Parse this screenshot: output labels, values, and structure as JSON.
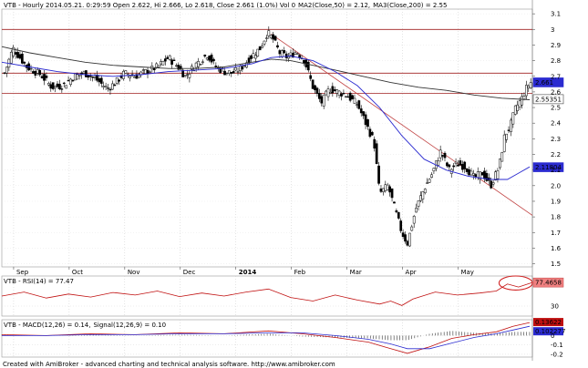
{
  "chart_data": [
    {
      "type": "candlestick",
      "title": "VTB - Hourly 2014.05.21. 0:29:59 Open 2.622, Hi 2.666, Lo 2.618, Close 2.661 (1.0%) Vol 0",
      "indicators": [
        {
          "label": "MA2(Close,50) = 2.12,",
          "color": "#2b2bd0"
        },
        {
          "label": "MA3(Close,200) = 2.55",
          "color": "#333333"
        }
      ],
      "x_labels": [
        "Sep",
        "Oct",
        "Nov",
        "Dec",
        "2014",
        "Feb",
        "Mar",
        "Apr",
        "May"
      ],
      "x_positions": [
        1,
        2,
        3,
        4,
        5,
        6,
        7,
        8,
        9
      ],
      "y_ticks": [
        1.5,
        1.6,
        1.7,
        1.8,
        1.9,
        2.0,
        2.1,
        2.2,
        2.3,
        2.4,
        2.5,
        2.6,
        2.7,
        2.8,
        2.9,
        3.0,
        3.1
      ],
      "y_tick_labels": [
        "1.5",
        "1.6",
        "1.7",
        "1.8",
        "1.9",
        "2.0",
        "2.1",
        "2.2",
        "2.3",
        "2.4",
        "2.5",
        "2.6",
        "2.7",
        "2.8",
        "2.9",
        "3",
        "3.1"
      ],
      "ylim": [
        1.48,
        3.13
      ],
      "xlim": [
        0.0,
        9.55
      ],
      "horizontal_lines": [
        3.0,
        2.72,
        2.59
      ],
      "trendline": {
        "from": [
          4.85,
          2.97
        ],
        "to": [
          9.55,
          1.81
        ],
        "color": "#c04040"
      },
      "value_badges": [
        {
          "value": "2.661",
          "y": 2.661,
          "color": "#2b2bd0"
        },
        {
          "value": "2.55351",
          "y": 2.5535,
          "color": "#ffffff",
          "text_color": "#000000"
        },
        {
          "value": "2.11804",
          "y": 2.118,
          "color": "#2b2bd0"
        }
      ],
      "price_path": [
        [
          0.05,
          2.72
        ],
        [
          0.2,
          2.88
        ],
        [
          0.45,
          2.76
        ],
        [
          0.7,
          2.71
        ],
        [
          0.9,
          2.63
        ],
        [
          1.1,
          2.64
        ],
        [
          1.3,
          2.7
        ],
        [
          1.5,
          2.72
        ],
        [
          1.7,
          2.68
        ],
        [
          1.9,
          2.62
        ],
        [
          2.05,
          2.66
        ],
        [
          2.2,
          2.72
        ],
        [
          2.4,
          2.7
        ],
        [
          2.6,
          2.73
        ],
        [
          2.8,
          2.76
        ],
        [
          3.0,
          2.82
        ],
        [
          3.2,
          2.75
        ],
        [
          3.3,
          2.7
        ],
        [
          3.5,
          2.78
        ],
        [
          3.7,
          2.84
        ],
        [
          3.85,
          2.76
        ],
        [
          4.0,
          2.73
        ],
        [
          4.15,
          2.72
        ],
        [
          4.3,
          2.75
        ],
        [
          4.5,
          2.83
        ],
        [
          4.65,
          2.88
        ],
        [
          4.78,
          2.98
        ],
        [
          4.88,
          2.94
        ],
        [
          5.0,
          2.85
        ],
        [
          5.15,
          2.82
        ],
        [
          5.3,
          2.86
        ],
        [
          5.45,
          2.8
        ],
        [
          5.6,
          2.63
        ],
        [
          5.75,
          2.53
        ],
        [
          5.9,
          2.62
        ],
        [
          6.05,
          2.6
        ],
        [
          6.2,
          2.58
        ],
        [
          6.4,
          2.52
        ],
        [
          6.55,
          2.4
        ],
        [
          6.7,
          2.28
        ],
        [
          6.8,
          1.95
        ],
        [
          6.95,
          2.0
        ],
        [
          7.1,
          1.82
        ],
        [
          7.2,
          1.7
        ],
        [
          7.3,
          1.63
        ],
        [
          7.45,
          1.85
        ],
        [
          7.6,
          1.98
        ],
        [
          7.75,
          2.08
        ],
        [
          7.9,
          2.22
        ],
        [
          8.05,
          2.1
        ],
        [
          8.2,
          2.14
        ],
        [
          8.35,
          2.12
        ],
        [
          8.5,
          2.05
        ],
        [
          8.65,
          2.08
        ],
        [
          8.8,
          2.0
        ],
        [
          8.95,
          2.12
        ],
        [
          9.05,
          2.32
        ],
        [
          9.15,
          2.38
        ],
        [
          9.25,
          2.5
        ],
        [
          9.35,
          2.55
        ],
        [
          9.45,
          2.63
        ],
        [
          9.52,
          2.66
        ]
      ],
      "ma50_path": [
        [
          0.0,
          2.79
        ],
        [
          0.5,
          2.76
        ],
        [
          1.0,
          2.73
        ],
        [
          1.5,
          2.71
        ],
        [
          2.0,
          2.7
        ],
        [
          2.5,
          2.71
        ],
        [
          3.0,
          2.73
        ],
        [
          3.5,
          2.74
        ],
        [
          4.0,
          2.75
        ],
        [
          4.5,
          2.78
        ],
        [
          4.85,
          2.82
        ],
        [
          5.2,
          2.83
        ],
        [
          5.6,
          2.8
        ],
        [
          6.0,
          2.73
        ],
        [
          6.4,
          2.64
        ],
        [
          6.8,
          2.5
        ],
        [
          7.2,
          2.32
        ],
        [
          7.6,
          2.17
        ],
        [
          8.0,
          2.1
        ],
        [
          8.4,
          2.06
        ],
        [
          8.8,
          2.04
        ],
        [
          9.1,
          2.04
        ],
        [
          9.3,
          2.08
        ],
        [
          9.5,
          2.12
        ]
      ],
      "ma200_path": [
        [
          0.0,
          2.89
        ],
        [
          0.5,
          2.85
        ],
        [
          1.0,
          2.82
        ],
        [
          1.5,
          2.79
        ],
        [
          2.0,
          2.77
        ],
        [
          2.5,
          2.76
        ],
        [
          3.0,
          2.75
        ],
        [
          3.5,
          2.75
        ],
        [
          4.0,
          2.76
        ],
        [
          4.5,
          2.79
        ],
        [
          4.85,
          2.81
        ],
        [
          5.2,
          2.8
        ],
        [
          5.6,
          2.77
        ],
        [
          6.0,
          2.74
        ],
        [
          6.5,
          2.7
        ],
        [
          7.0,
          2.66
        ],
        [
          7.5,
          2.63
        ],
        [
          8.0,
          2.61
        ],
        [
          8.5,
          2.58
        ],
        [
          9.0,
          2.56
        ],
        [
          9.5,
          2.55
        ]
      ]
    },
    {
      "type": "line",
      "title": "VTB - RSI(14) = 77.47",
      "name": "RSI(14)",
      "color": "#c01010",
      "badge": "77.4658",
      "y_ticks": [
        30
      ],
      "y_tick_labels": [
        "30"
      ],
      "ylim": [
        10,
        90
      ],
      "highlight_ellipse": {
        "x": [
          8.95,
          9.55
        ],
        "y": [
          62,
          90
        ]
      },
      "path": [
        [
          0.0,
          50
        ],
        [
          0.4,
          58
        ],
        [
          0.8,
          46
        ],
        [
          1.2,
          54
        ],
        [
          1.6,
          48
        ],
        [
          2.0,
          57
        ],
        [
          2.4,
          52
        ],
        [
          2.8,
          60
        ],
        [
          3.2,
          49
        ],
        [
          3.6,
          56
        ],
        [
          4.0,
          50
        ],
        [
          4.4,
          58
        ],
        [
          4.8,
          64
        ],
        [
          5.2,
          47
        ],
        [
          5.6,
          40
        ],
        [
          6.0,
          52
        ],
        [
          6.4,
          42
        ],
        [
          6.8,
          34
        ],
        [
          7.0,
          40
        ],
        [
          7.2,
          31
        ],
        [
          7.4,
          44
        ],
        [
          7.8,
          58
        ],
        [
          8.2,
          52
        ],
        [
          8.6,
          56
        ],
        [
          8.9,
          60
        ],
        [
          9.1,
          74
        ],
        [
          9.3,
          68
        ],
        [
          9.55,
          77
        ]
      ]
    },
    {
      "type": "line",
      "title": "VTB - MACD(12,26) = 0.14,",
      "title2": "Signal(12,26,9) = 0.10",
      "series": [
        {
          "name": "MACD(12,26)",
          "color": "#c01010"
        },
        {
          "name": "Signal(12,26,9)",
          "color": "#2b2bd0"
        }
      ],
      "badges": [
        "0.13622",
        "0.102277"
      ],
      "y_ticks": [
        0,
        -0.1,
        -0.2
      ],
      "y_tick_labels": [
        "0",
        "-0.1",
        "-0.2"
      ],
      "ylim": [
        -0.23,
        0.17
      ],
      "macd_path": [
        [
          0.0,
          0.01
        ],
        [
          0.8,
          0.0
        ],
        [
          1.6,
          0.02
        ],
        [
          2.4,
          0.01
        ],
        [
          3.2,
          0.03
        ],
        [
          4.0,
          0.02
        ],
        [
          4.8,
          0.05
        ],
        [
          5.4,
          0.02
        ],
        [
          6.0,
          -0.02
        ],
        [
          6.6,
          -0.07
        ],
        [
          7.0,
          -0.14
        ],
        [
          7.3,
          -0.19
        ],
        [
          7.7,
          -0.12
        ],
        [
          8.1,
          -0.03
        ],
        [
          8.5,
          0.01
        ],
        [
          8.9,
          0.04
        ],
        [
          9.2,
          0.1
        ],
        [
          9.5,
          0.14
        ]
      ],
      "signal_path": [
        [
          0.0,
          0.0
        ],
        [
          0.8,
          0.0
        ],
        [
          1.6,
          0.01
        ],
        [
          2.4,
          0.01
        ],
        [
          3.2,
          0.02
        ],
        [
          4.0,
          0.02
        ],
        [
          4.8,
          0.03
        ],
        [
          5.4,
          0.03
        ],
        [
          6.0,
          0.0
        ],
        [
          6.6,
          -0.04
        ],
        [
          7.0,
          -0.09
        ],
        [
          7.3,
          -0.14
        ],
        [
          7.7,
          -0.14
        ],
        [
          8.1,
          -0.08
        ],
        [
          8.5,
          -0.02
        ],
        [
          8.9,
          0.02
        ],
        [
          9.2,
          0.06
        ],
        [
          9.5,
          0.1
        ]
      ]
    }
  ],
  "footer": "Created with AmiBroker - advanced charting and technical analysis software. http://www.amibroker.com"
}
